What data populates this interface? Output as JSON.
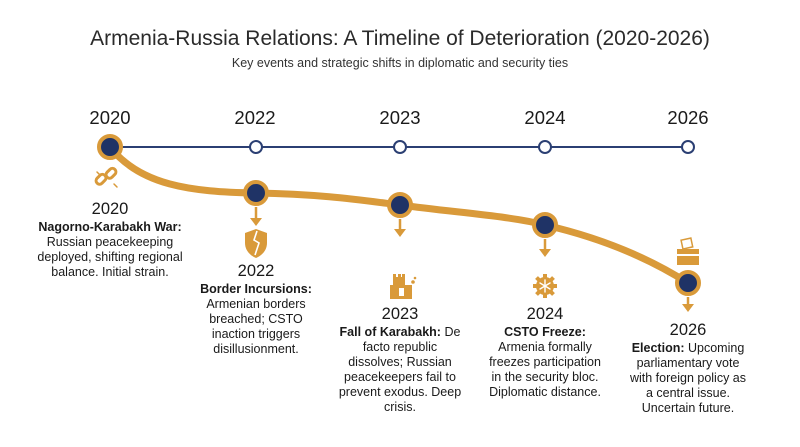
{
  "title": "Armenia-Russia Relations: A Timeline of Deterioration (2020-2026)",
  "subtitle": "Key events and strategic shifts in diplomatic and security ties",
  "top_years": [
    "2020",
    "2022",
    "2023",
    "2024",
    "2026"
  ],
  "colors": {
    "navy": "#1f3366",
    "gold": "#d99a3a",
    "line_navy": "#2b3f73"
  },
  "events": [
    {
      "year": "2020",
      "label": "Nagorno-Karabakh War:",
      "text": "Russian peacekeeping deployed, shifting regional balance. Initial strain.",
      "icon": "broken-link-icon"
    },
    {
      "year": "2022",
      "label": "Border Incursions:",
      "text": "Armenian borders breached; CSTO inaction triggers disillusionment.",
      "icon": "broken-shield-icon"
    },
    {
      "year": "2023",
      "label": "Fall of Karabakh:",
      "text": "De facto republic dissolves; Russian peacekeepers fail to prevent exodus. Deep crisis.",
      "icon": "crumbling-tower-icon"
    },
    {
      "year": "2024",
      "label": "CSTO Freeze:",
      "text": "Armenia formally freezes participation in the security bloc. Diplomatic distance.",
      "icon": "frozen-gear-icon"
    },
    {
      "year": "2026",
      "label": "Election:",
      "text": "Upcoming parliamentary vote with foreign policy as a central issue. Uncertain future.",
      "icon": "ballot-box-icon"
    }
  ]
}
